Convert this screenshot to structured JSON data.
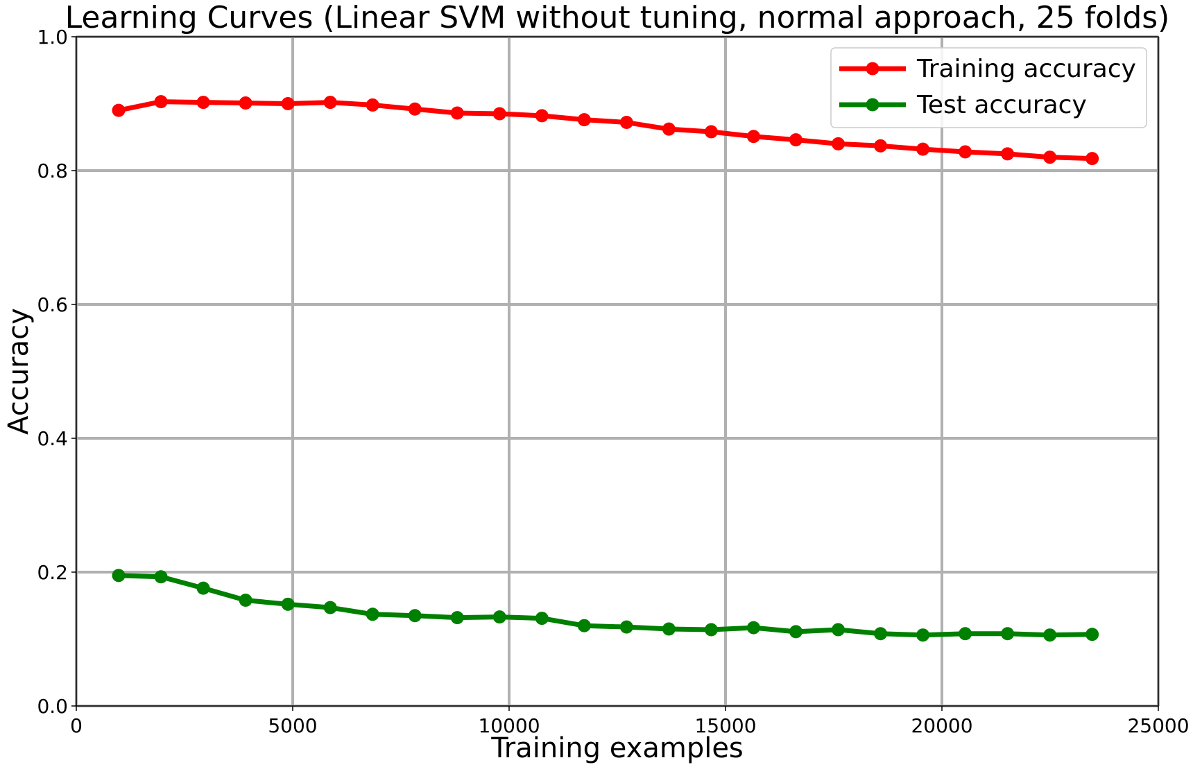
{
  "chart_data": {
    "type": "line",
    "title": "Learning Curves (Linear SVM without tuning, normal approach, 25 folds)",
    "xlabel": "Training examples",
    "ylabel": "Accuracy",
    "xlim": [
      0,
      25000
    ],
    "ylim": [
      0.0,
      1.0
    ],
    "xticks": [
      0,
      5000,
      10000,
      15000,
      20000,
      25000
    ],
    "xtick_labels": [
      "0",
      "5000",
      "10000",
      "15000",
      "20000",
      "25000"
    ],
    "yticks": [
      0.0,
      0.2,
      0.4,
      0.6,
      0.8,
      1.0
    ],
    "ytick_labels": [
      "0.0",
      "0.2",
      "0.4",
      "0.6",
      "0.8",
      "1.0"
    ],
    "grid": true,
    "legend_position": "top-right",
    "x": [
      978,
      1956,
      2934,
      3912,
      4890,
      5868,
      6846,
      7824,
      8802,
      9780,
      10758,
      11736,
      12714,
      13692,
      14670,
      15648,
      16626,
      17604,
      18582,
      19560,
      20538,
      21516,
      22494,
      23472
    ],
    "series": [
      {
        "name": "Training accuracy",
        "color": "#ff0000",
        "values": [
          0.89,
          0.903,
          0.902,
          0.901,
          0.9,
          0.902,
          0.898,
          0.892,
          0.886,
          0.885,
          0.882,
          0.876,
          0.872,
          0.862,
          0.858,
          0.851,
          0.846,
          0.84,
          0.837,
          0.832,
          0.828,
          0.825,
          0.82,
          0.818
        ]
      },
      {
        "name": "Test accuracy",
        "color": "#008000",
        "values": [
          0.195,
          0.193,
          0.176,
          0.158,
          0.152,
          0.147,
          0.137,
          0.135,
          0.132,
          0.133,
          0.131,
          0.12,
          0.118,
          0.115,
          0.114,
          0.117,
          0.111,
          0.114,
          0.108,
          0.106,
          0.108,
          0.108,
          0.106,
          0.107
        ]
      }
    ]
  }
}
